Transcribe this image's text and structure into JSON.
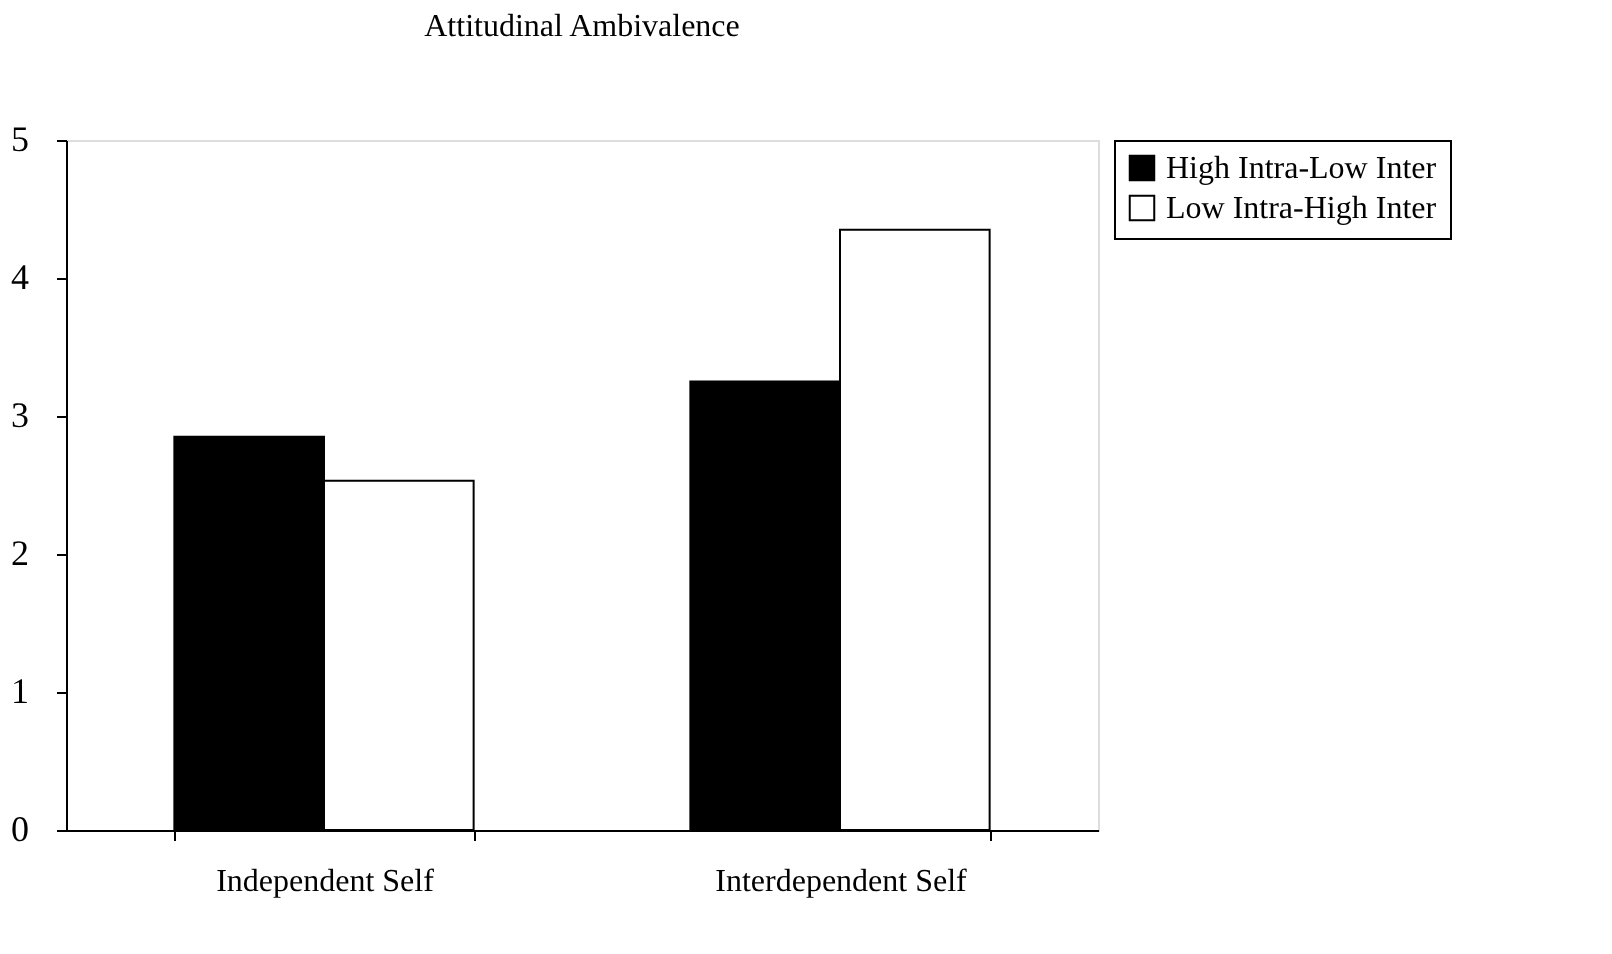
{
  "chart_data": {
    "type": "bar",
    "title": "Attitudinal Ambivalence",
    "categories": [
      "Independent Self",
      "Interdependent Self"
    ],
    "series": [
      {
        "name": "High Intra-Low Inter",
        "color": "#000000",
        "values": [
          2.85,
          3.25
        ]
      },
      {
        "name": "Low Intra-High Inter",
        "color": "#ffffff",
        "values": [
          2.53,
          4.35
        ]
      }
    ],
    "ylim": [
      0,
      5
    ],
    "yticks": [
      0,
      1,
      2,
      3,
      4,
      5
    ],
    "grid": false,
    "legend": "top right"
  }
}
